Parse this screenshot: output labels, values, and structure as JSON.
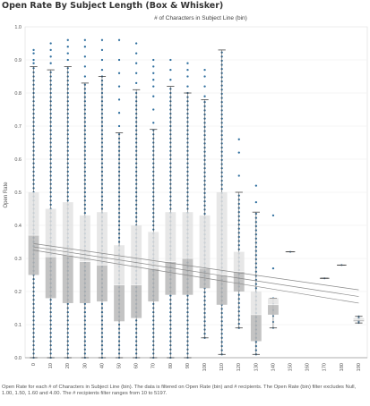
{
  "page_title": "Open Rate By Subject Length (Box & Whisker)",
  "caption": "Open Rate for each # of Characters in Subject Line (bin). The data is filtered on Open Rate (bin) and # recipients. The Open Rate (bin) filter excludes Null, 1.00, 1.50, 1.60 and 4.00. The # recipients filter ranges from 10 to 5197.",
  "colors": {
    "points": "#2e6e9e",
    "box_upper": "#e3e3e3",
    "box_lower": "#b8b8b8",
    "whisker": "#444444",
    "trend": "#888888",
    "grid": "#eeeeee"
  },
  "chart_data": {
    "type": "box",
    "title": "# of Characters in Subject Line (bin)",
    "xlabel": "",
    "ylabel": "Open Rate",
    "ylim": [
      0.0,
      1.0
    ],
    "yticks": [
      0.0,
      0.1,
      0.2,
      0.3,
      0.4,
      0.5,
      0.6,
      0.7,
      0.8,
      0.9,
      1.0
    ],
    "grid": true,
    "categories": [
      "0",
      "10",
      "20",
      "30",
      "40",
      "50",
      "60",
      "70",
      "80",
      "90",
      "100",
      "110",
      "120",
      "130",
      "140",
      "150",
      "160",
      "170",
      "180",
      "190"
    ],
    "boxes": [
      {
        "category": "0",
        "q1": 0.25,
        "median": 0.37,
        "q3": 0.5,
        "whisker_low": 0.0,
        "whisker_high": 0.88
      },
      {
        "category": "10",
        "q1": 0.18,
        "median": 0.305,
        "q3": 0.45,
        "whisker_low": 0.0,
        "whisker_high": 0.87
      },
      {
        "category": "20",
        "q1": 0.165,
        "median": 0.31,
        "q3": 0.47,
        "whisker_low": 0.0,
        "whisker_high": 0.88
      },
      {
        "category": "30",
        "q1": 0.165,
        "median": 0.29,
        "q3": 0.43,
        "whisker_low": 0.0,
        "whisker_high": 0.83
      },
      {
        "category": "40",
        "q1": 0.17,
        "median": 0.28,
        "q3": 0.44,
        "whisker_low": 0.0,
        "whisker_high": 0.85
      },
      {
        "category": "50",
        "q1": 0.11,
        "median": 0.22,
        "q3": 0.34,
        "whisker_low": 0.0,
        "whisker_high": 0.68
      },
      {
        "category": "60",
        "q1": 0.12,
        "median": 0.22,
        "q3": 0.4,
        "whisker_low": 0.0,
        "whisker_high": 0.81
      },
      {
        "category": "70",
        "q1": 0.17,
        "median": 0.27,
        "q3": 0.38,
        "whisker_low": 0.0,
        "whisker_high": 0.69
      },
      {
        "category": "80",
        "q1": 0.19,
        "median": 0.29,
        "q3": 0.44,
        "whisker_low": 0.0,
        "whisker_high": 0.82
      },
      {
        "category": "90",
        "q1": 0.19,
        "median": 0.3,
        "q3": 0.44,
        "whisker_low": 0.0,
        "whisker_high": 0.8
      },
      {
        "category": "100",
        "q1": 0.21,
        "median": 0.27,
        "q3": 0.43,
        "whisker_low": 0.06,
        "whisker_high": 0.78
      },
      {
        "category": "110",
        "q1": 0.16,
        "median": 0.25,
        "q3": 0.5,
        "whisker_low": 0.01,
        "whisker_high": 0.93
      },
      {
        "category": "120",
        "q1": 0.2,
        "median": 0.26,
        "q3": 0.32,
        "whisker_low": 0.09,
        "whisker_high": 0.5
      },
      {
        "category": "130",
        "q1": 0.05,
        "median": 0.13,
        "q3": 0.2,
        "whisker_low": 0.01,
        "whisker_high": 0.44
      },
      {
        "category": "140",
        "q1": 0.13,
        "median": 0.16,
        "q3": 0.18,
        "whisker_low": 0.09,
        "whisker_high": 0.18
      },
      {
        "category": "150",
        "q1": 0.32,
        "median": 0.32,
        "q3": 0.32,
        "whisker_low": 0.32,
        "whisker_high": 0.32
      },
      {
        "category": "160",
        "q1": null,
        "median": null,
        "q3": null,
        "whisker_low": null,
        "whisker_high": null
      },
      {
        "category": "170",
        "q1": 0.24,
        "median": 0.24,
        "q3": 0.24,
        "whisker_low": 0.24,
        "whisker_high": 0.24
      },
      {
        "category": "180",
        "q1": 0.28,
        "median": 0.28,
        "q3": 0.28,
        "whisker_low": 0.28,
        "whisker_high": 0.28
      },
      {
        "category": "190",
        "q1": 0.11,
        "median": 0.115,
        "q3": 0.12,
        "whisker_low": 0.105,
        "whisker_high": 0.125
      }
    ],
    "outliers": [
      {
        "category": "0",
        "values": [
          0.89,
          0.9,
          0.92,
          0.93
        ]
      },
      {
        "category": "10",
        "values": [
          0.89,
          0.91,
          0.93,
          0.95
        ]
      },
      {
        "category": "20",
        "values": [
          0.9,
          0.92,
          0.94,
          0.96
        ]
      },
      {
        "category": "30",
        "values": [
          0.85,
          0.88,
          0.91,
          0.94,
          0.96
        ]
      },
      {
        "category": "40",
        "values": [
          0.87,
          0.9,
          0.93,
          0.96
        ]
      },
      {
        "category": "50",
        "values": [
          0.7,
          0.74,
          0.78,
          0.82,
          0.86,
          0.9,
          0.96
        ]
      },
      {
        "category": "60",
        "values": [
          0.83,
          0.86,
          0.89,
          0.92,
          0.95
        ]
      },
      {
        "category": "70",
        "values": [
          0.71,
          0.75,
          0.79,
          0.82,
          0.84,
          0.86,
          0.88,
          0.9
        ]
      },
      {
        "category": "80",
        "values": [
          0.84,
          0.87,
          0.9
        ]
      },
      {
        "category": "90",
        "values": [
          0.82,
          0.85,
          0.87,
          0.89
        ]
      },
      {
        "category": "100",
        "values": [
          0.79,
          0.82,
          0.85,
          0.87
        ]
      },
      {
        "category": "120",
        "values": [
          0.55,
          0.62,
          0.66
        ]
      },
      {
        "category": "130",
        "values": [
          0.47,
          0.52
        ]
      },
      {
        "category": "140",
        "values": [
          0.27,
          0.43
        ]
      }
    ],
    "trend_lines": [
      {
        "name": "",
        "x": [
          0,
          190
        ],
        "y": [
          0.345,
          0.205
        ]
      },
      {
        "name": "",
        "x": [
          0,
          190
        ],
        "y": [
          0.335,
          0.185
        ]
      },
      {
        "name": "",
        "x": [
          0,
          190
        ],
        "y": [
          0.325,
          0.165
        ]
      }
    ]
  }
}
